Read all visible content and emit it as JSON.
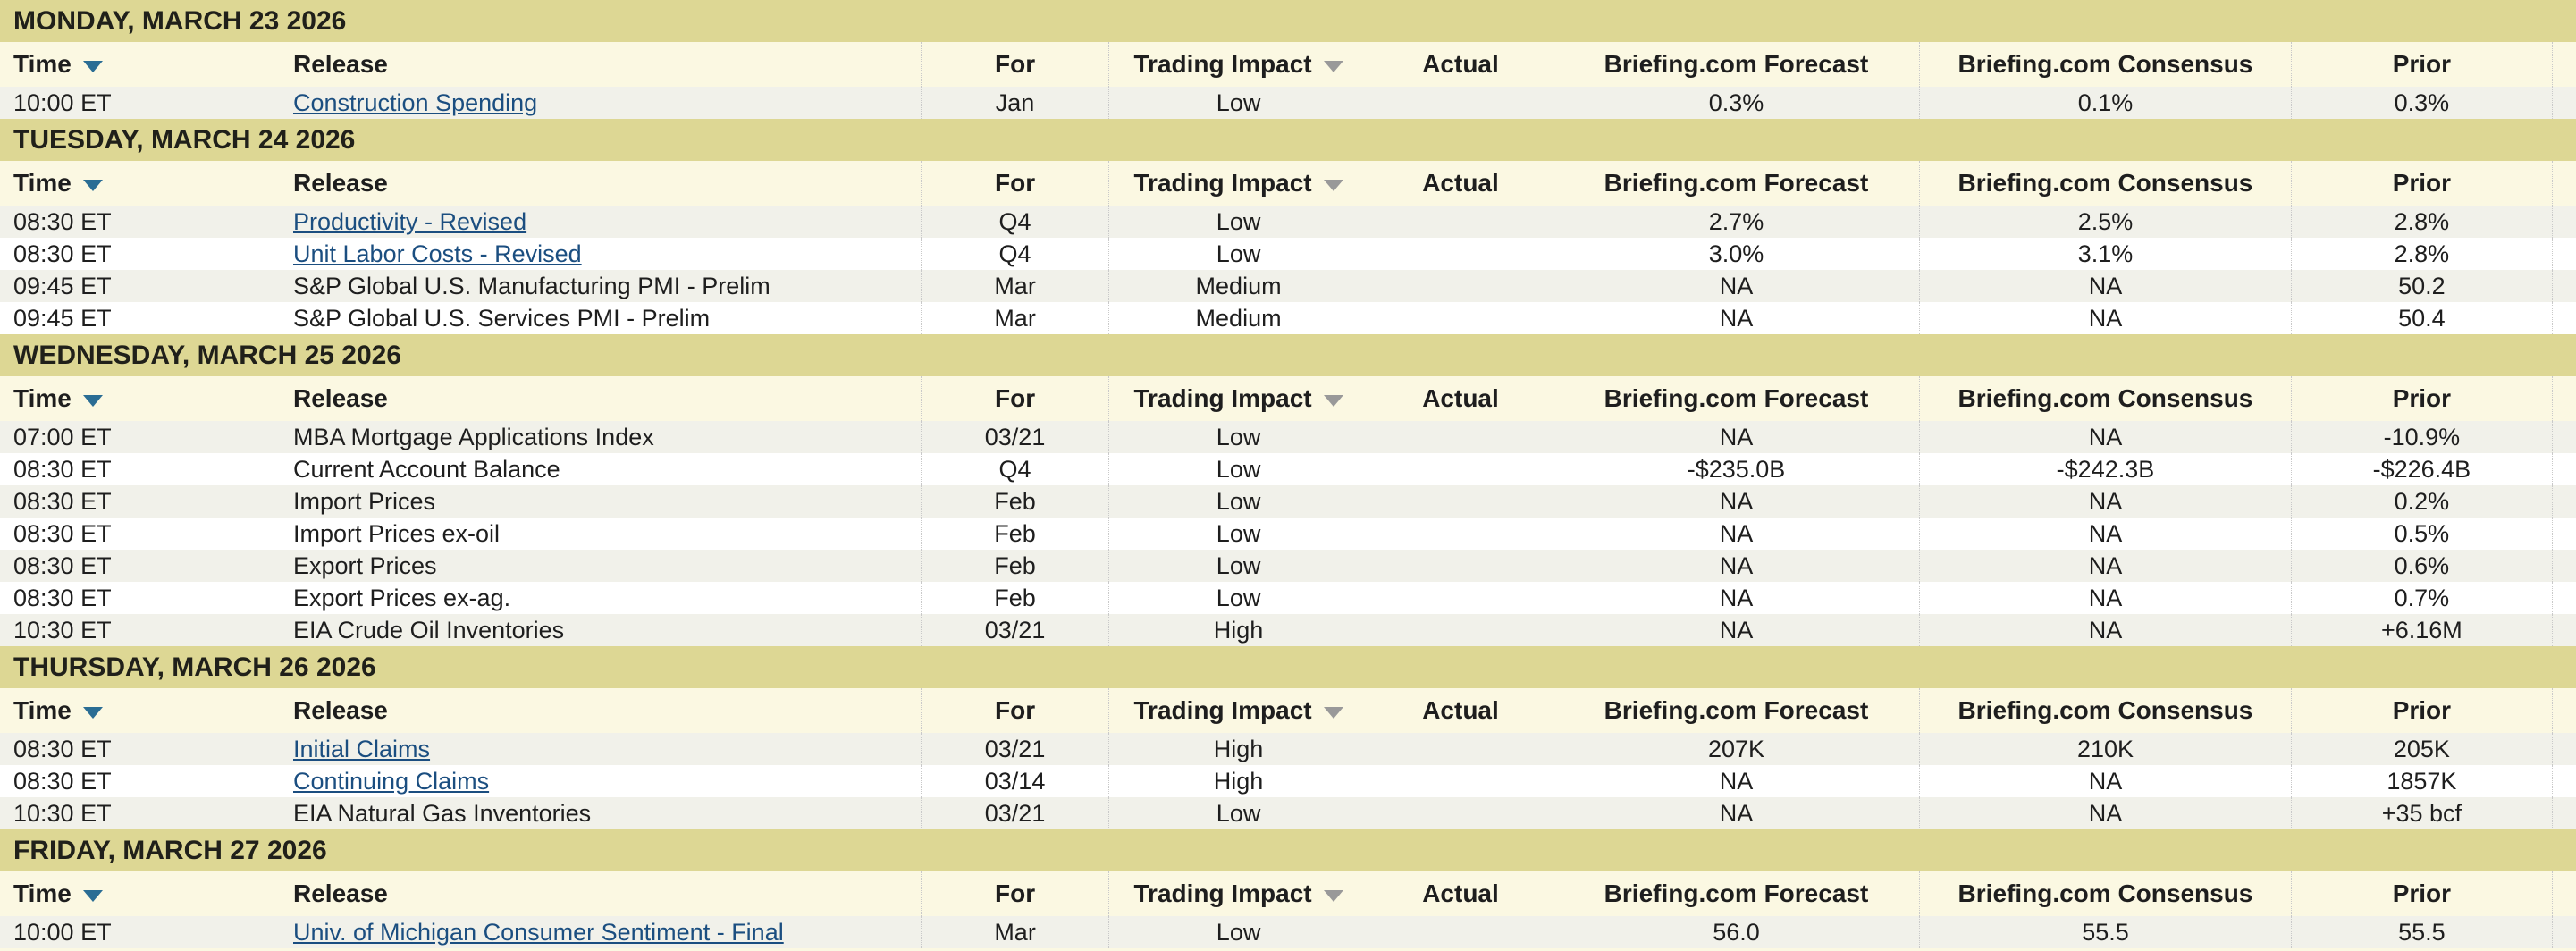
{
  "table": {
    "columns": [
      {
        "key": "time",
        "label": "Time",
        "sortable": true,
        "sort_icon": "active-blue"
      },
      {
        "key": "release",
        "label": "Release",
        "sortable": false
      },
      {
        "key": "for",
        "label": "For",
        "sortable": false
      },
      {
        "key": "impact",
        "label": "Trading Impact",
        "sortable": true,
        "sort_icon": "inactive-gray"
      },
      {
        "key": "actual",
        "label": "Actual",
        "sortable": false
      },
      {
        "key": "forecast",
        "label": "Briefing.com Forecast",
        "sortable": false
      },
      {
        "key": "consensus",
        "label": "Briefing.com Consensus",
        "sortable": false
      },
      {
        "key": "prior",
        "label": "Prior",
        "sortable": false
      }
    ],
    "days": [
      {
        "date_header": "MONDAY, MARCH 23 2026",
        "rows": [
          {
            "time": "10:00 ET",
            "release": "Construction Spending",
            "link": true,
            "for": "Jan",
            "impact": "Low",
            "actual": "",
            "forecast": "0.3%",
            "consensus": "0.1%",
            "prior": "0.3%"
          }
        ]
      },
      {
        "date_header": "TUESDAY, MARCH 24 2026",
        "rows": [
          {
            "time": "08:30 ET",
            "release": "Productivity - Revised",
            "link": true,
            "for": "Q4",
            "impact": "Low",
            "actual": "",
            "forecast": "2.7%",
            "consensus": "2.5%",
            "prior": "2.8%"
          },
          {
            "time": "08:30 ET",
            "release": "Unit Labor Costs - Revised",
            "link": true,
            "for": "Q4",
            "impact": "Low",
            "actual": "",
            "forecast": "3.0%",
            "consensus": "3.1%",
            "prior": "2.8%"
          },
          {
            "time": "09:45 ET",
            "release": "S&P Global U.S. Manufacturing PMI - Prelim",
            "link": false,
            "for": "Mar",
            "impact": "Medium",
            "actual": "",
            "forecast": "NA",
            "consensus": "NA",
            "prior": "50.2"
          },
          {
            "time": "09:45 ET",
            "release": "S&P Global U.S. Services PMI - Prelim",
            "link": false,
            "for": "Mar",
            "impact": "Medium",
            "actual": "",
            "forecast": "NA",
            "consensus": "NA",
            "prior": "50.4"
          }
        ]
      },
      {
        "date_header": "WEDNESDAY, MARCH 25 2026",
        "rows": [
          {
            "time": "07:00 ET",
            "release": "MBA Mortgage Applications Index",
            "link": false,
            "for": "03/21",
            "impact": "Low",
            "actual": "",
            "forecast": "NA",
            "consensus": "NA",
            "prior": "-10.9%"
          },
          {
            "time": "08:30 ET",
            "release": "Current Account Balance",
            "link": false,
            "for": "Q4",
            "impact": "Low",
            "actual": "",
            "forecast": "-$235.0B",
            "consensus": "-$242.3B",
            "prior": "-$226.4B"
          },
          {
            "time": "08:30 ET",
            "release": "Import Prices",
            "link": false,
            "for": "Feb",
            "impact": "Low",
            "actual": "",
            "forecast": "NA",
            "consensus": "NA",
            "prior": "0.2%"
          },
          {
            "time": "08:30 ET",
            "release": "Import Prices ex-oil",
            "link": false,
            "for": "Feb",
            "impact": "Low",
            "actual": "",
            "forecast": "NA",
            "consensus": "NA",
            "prior": "0.5%"
          },
          {
            "time": "08:30 ET",
            "release": "Export Prices",
            "link": false,
            "for": "Feb",
            "impact": "Low",
            "actual": "",
            "forecast": "NA",
            "consensus": "NA",
            "prior": "0.6%"
          },
          {
            "time": "08:30 ET",
            "release": "Export Prices ex-ag.",
            "link": false,
            "for": "Feb",
            "impact": "Low",
            "actual": "",
            "forecast": "NA",
            "consensus": "NA",
            "prior": "0.7%"
          },
          {
            "time": "10:30 ET",
            "release": "EIA Crude Oil Inventories",
            "link": false,
            "for": "03/21",
            "impact": "High",
            "actual": "",
            "forecast": "NA",
            "consensus": "NA",
            "prior": "+6.16M"
          }
        ]
      },
      {
        "date_header": "THURSDAY, MARCH 26 2026",
        "rows": [
          {
            "time": "08:30 ET",
            "release": "Initial Claims",
            "link": true,
            "for": "03/21",
            "impact": "High",
            "actual": "",
            "forecast": "207K",
            "consensus": "210K",
            "prior": "205K"
          },
          {
            "time": "08:30 ET",
            "release": "Continuing Claims",
            "link": true,
            "for": "03/14",
            "impact": "High",
            "actual": "",
            "forecast": "NA",
            "consensus": "NA",
            "prior": "1857K"
          },
          {
            "time": "10:30 ET",
            "release": "EIA Natural Gas Inventories",
            "link": false,
            "for": "03/21",
            "impact": "Low",
            "actual": "",
            "forecast": "NA",
            "consensus": "NA",
            "prior": "+35 bcf"
          }
        ]
      },
      {
        "date_header": "FRIDAY, MARCH 27 2026",
        "rows": [
          {
            "time": "10:00 ET",
            "release": "Univ. of Michigan Consumer Sentiment - Final",
            "link": true,
            "for": "Mar",
            "impact": "Low",
            "actual": "",
            "forecast": "56.0",
            "consensus": "55.5",
            "prior": "55.5"
          }
        ]
      }
    ]
  },
  "colors": {
    "day_band": "#ddd794",
    "header_bg": "#fbf8e2",
    "row_alt_bg": "#f1f1ea",
    "row_bg": "#ffffff",
    "text": "#1e1e1e",
    "link": "#1b4e80",
    "sort_arrow_active": "#2a6d94",
    "sort_arrow_inactive": "#999999",
    "divider": "#c9c9c9"
  }
}
